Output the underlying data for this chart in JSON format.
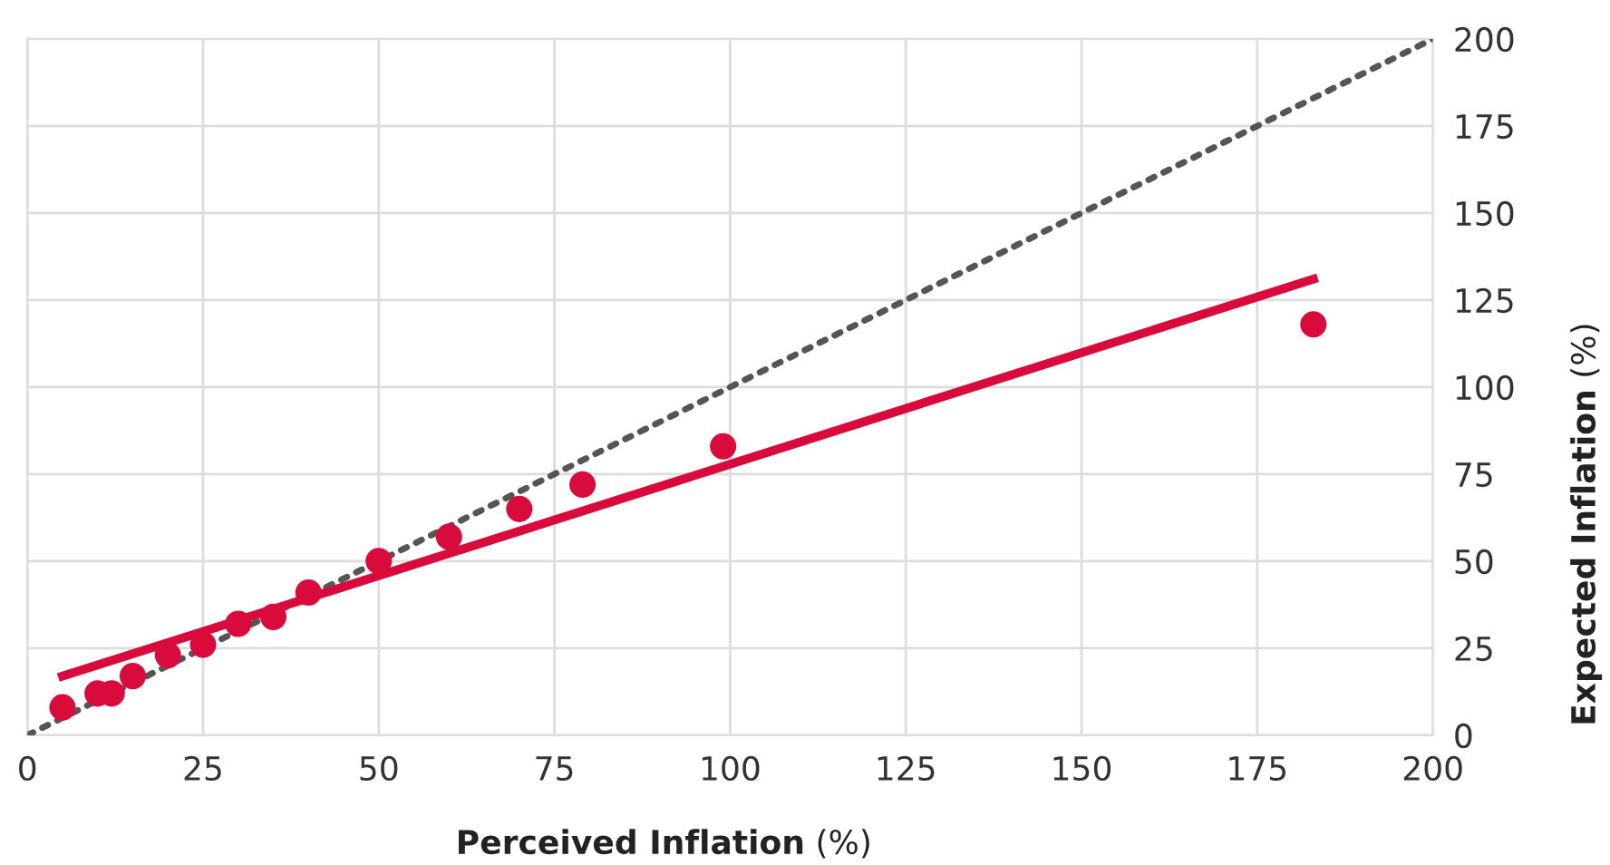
{
  "chart_data": {
    "type": "scatter",
    "xlabel": "Perceived Inflation (%)",
    "ylabel": "Expected Inflation (%)",
    "xlim": [
      0,
      200
    ],
    "ylim": [
      0,
      200
    ],
    "xticks": [
      0,
      25,
      50,
      75,
      100,
      125,
      150,
      175,
      200
    ],
    "yticks": [
      0,
      25,
      50,
      75,
      100,
      125,
      150,
      175,
      200
    ],
    "grid": true,
    "series": [
      {
        "type": "line",
        "color": "#555555",
        "line_style": "dotted",
        "marker": "none",
        "x": [
          0,
          200
        ],
        "values": [
          0,
          200
        ]
      },
      {
        "type": "line",
        "color": "#d90a3c",
        "line_style": "solid",
        "marker": "none",
        "x": [
          5,
          183
        ],
        "values": [
          17,
          131
        ]
      },
      {
        "color": "#d90a3c",
        "marker": "circle",
        "x": [
          5,
          10,
          12,
          15,
          20,
          25,
          30,
          35,
          40,
          50,
          60,
          70,
          79,
          99,
          183
        ],
        "values": [
          8,
          12,
          12,
          17,
          23,
          26,
          32,
          34,
          41,
          50,
          57,
          65,
          72,
          83,
          118
        ]
      }
    ]
  }
}
